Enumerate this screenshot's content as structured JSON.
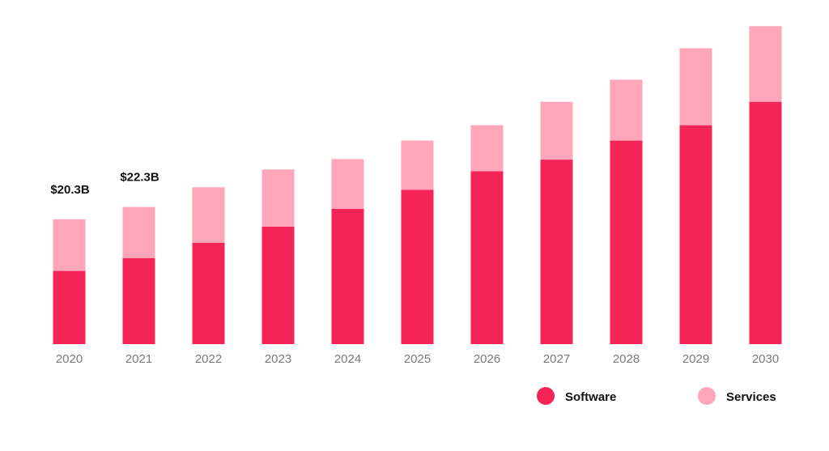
{
  "chart_data": {
    "type": "bar",
    "stacked": true,
    "title": "",
    "xlabel": "",
    "ylabel": "",
    "categories": [
      "2020",
      "2021",
      "2022",
      "2023",
      "2024",
      "2025",
      "2026",
      "2027",
      "2028",
      "2029",
      "2030"
    ],
    "series": [
      {
        "name": "Software",
        "color": "#F42457",
        "values": [
          11.9,
          14.0,
          16.5,
          19.1,
          22.0,
          25.1,
          28.1,
          30.0,
          33.1,
          35.6,
          39.4
        ]
      },
      {
        "name": "Services",
        "color": "#FFA6BA",
        "values": [
          8.4,
          8.3,
          9.0,
          9.3,
          8.1,
          8.0,
          7.5,
          9.4,
          9.9,
          12.5,
          12.3
        ]
      }
    ],
    "data_labels": [
      {
        "category": "2020",
        "text": "$20.3B"
      },
      {
        "category": "2021",
        "text": "$22.3B"
      }
    ],
    "ylim": [
      0,
      52
    ],
    "grid": false,
    "legend_position": "bottom-right"
  }
}
